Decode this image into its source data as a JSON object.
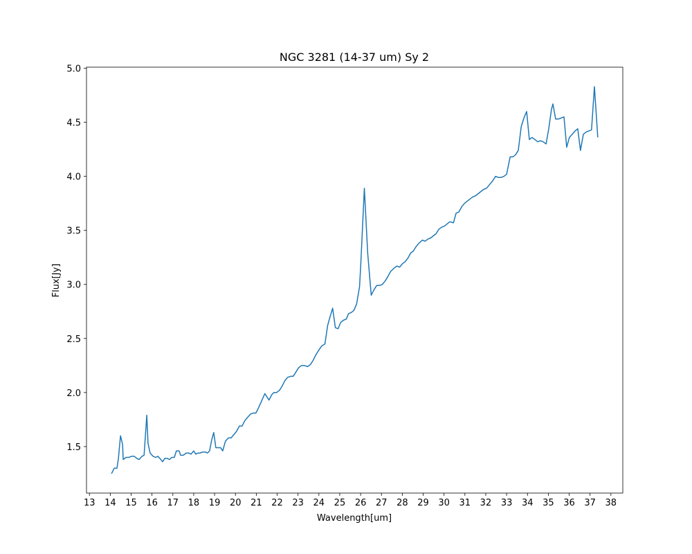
{
  "chart_data": {
    "type": "line",
    "title": "NGC 3281 (14-37 um) Sy 2",
    "x_label": "Wavelength[um]",
    "y_label": "Flux[Jy]",
    "color": "#1f77b4",
    "x": [
      14.06,
      14.19,
      14.32,
      14.39,
      14.49,
      14.59,
      14.62,
      14.75,
      14.89,
      15.02,
      15.15,
      15.28,
      15.38,
      15.52,
      15.62,
      15.75,
      15.81,
      15.91,
      16.05,
      16.18,
      16.28,
      16.38,
      16.51,
      16.61,
      16.74,
      16.84,
      16.94,
      17.07,
      17.17,
      17.3,
      17.37,
      17.5,
      17.64,
      17.77,
      17.87,
      18.0,
      18.1,
      18.2,
      18.3,
      18.43,
      18.56,
      18.66,
      18.76,
      18.86,
      18.96,
      19.06,
      19.16,
      19.29,
      19.39,
      19.52,
      19.66,
      19.79,
      19.92,
      20.05,
      20.19,
      20.32,
      20.45,
      20.58,
      20.72,
      20.85,
      20.98,
      21.11,
      21.25,
      21.41,
      21.51,
      21.61,
      21.74,
      21.84,
      21.97,
      22.11,
      22.24,
      22.37,
      22.5,
      22.64,
      22.77,
      22.9,
      23.03,
      23.17,
      23.3,
      23.46,
      23.6,
      23.73,
      23.86,
      23.99,
      24.13,
      24.29,
      24.42,
      24.52,
      24.66,
      24.79,
      24.92,
      25.05,
      25.19,
      25.32,
      25.42,
      25.55,
      25.68,
      25.81,
      25.95,
      26.01,
      26.18,
      26.34,
      26.51,
      26.64,
      26.77,
      26.91,
      27.04,
      27.17,
      27.3,
      27.44,
      27.6,
      27.74,
      27.87,
      28.0,
      28.13,
      28.26,
      28.4,
      28.53,
      28.66,
      28.79,
      28.96,
      29.09,
      29.23,
      29.36,
      29.49,
      29.62,
      29.75,
      29.89,
      30.02,
      30.15,
      30.28,
      30.45,
      30.58,
      30.71,
      30.85,
      30.98,
      31.11,
      31.24,
      31.38,
      31.51,
      31.64,
      31.77,
      31.91,
      32.04,
      32.21,
      32.34,
      32.47,
      32.6,
      32.74,
      32.87,
      33.0,
      33.17,
      33.3,
      33.43,
      33.56,
      33.7,
      33.83,
      33.96,
      34.09,
      34.22,
      34.36,
      34.49,
      34.62,
      34.75,
      34.89,
      35.02,
      35.15,
      35.22,
      35.35,
      35.48,
      35.62,
      35.75,
      35.88,
      36.01,
      36.15,
      36.28,
      36.41,
      36.54,
      36.68,
      36.81,
      36.94,
      37.07,
      37.21,
      37.37
    ],
    "values": [
      1.25,
      1.3,
      1.3,
      1.39,
      1.6,
      1.52,
      1.38,
      1.4,
      1.4,
      1.41,
      1.41,
      1.39,
      1.38,
      1.41,
      1.42,
      1.79,
      1.53,
      1.44,
      1.41,
      1.4,
      1.41,
      1.39,
      1.36,
      1.39,
      1.39,
      1.38,
      1.4,
      1.4,
      1.46,
      1.46,
      1.42,
      1.42,
      1.44,
      1.44,
      1.43,
      1.46,
      1.43,
      1.44,
      1.44,
      1.45,
      1.45,
      1.44,
      1.46,
      1.56,
      1.63,
      1.49,
      1.49,
      1.49,
      1.46,
      1.55,
      1.58,
      1.58,
      1.61,
      1.64,
      1.69,
      1.69,
      1.74,
      1.77,
      1.8,
      1.81,
      1.81,
      1.86,
      1.92,
      1.99,
      1.96,
      1.93,
      1.98,
      2.0,
      2.0,
      2.02,
      2.06,
      2.11,
      2.14,
      2.15,
      2.15,
      2.19,
      2.23,
      2.25,
      2.25,
      2.24,
      2.26,
      2.3,
      2.35,
      2.39,
      2.43,
      2.45,
      2.62,
      2.69,
      2.78,
      2.6,
      2.59,
      2.65,
      2.67,
      2.68,
      2.73,
      2.74,
      2.76,
      2.82,
      2.98,
      3.19,
      3.89,
      3.29,
      2.9,
      2.95,
      2.99,
      2.99,
      3.0,
      3.03,
      3.07,
      3.12,
      3.15,
      3.17,
      3.16,
      3.19,
      3.21,
      3.24,
      3.29,
      3.31,
      3.35,
      3.38,
      3.41,
      3.4,
      3.42,
      3.43,
      3.45,
      3.47,
      3.51,
      3.53,
      3.54,
      3.56,
      3.58,
      3.57,
      3.66,
      3.67,
      3.72,
      3.75,
      3.77,
      3.79,
      3.81,
      3.82,
      3.84,
      3.86,
      3.88,
      3.89,
      3.93,
      3.96,
      4.0,
      3.99,
      3.99,
      4.0,
      4.02,
      4.18,
      4.18,
      4.2,
      4.24,
      4.46,
      4.54,
      4.6,
      4.34,
      4.36,
      4.34,
      4.32,
      4.33,
      4.32,
      4.3,
      4.44,
      4.62,
      4.67,
      4.53,
      4.53,
      4.54,
      4.55,
      4.27,
      4.36,
      4.39,
      4.42,
      4.44,
      4.24,
      4.39,
      4.41,
      4.42,
      4.43,
      4.83,
      4.36
    ],
    "xlim": [
      12.86,
      38.57
    ],
    "ylim": [
      1.07,
      5.01
    ],
    "xticks": [
      13,
      14,
      15,
      16,
      17,
      18,
      19,
      20,
      21,
      22,
      23,
      24,
      25,
      26,
      27,
      28,
      29,
      30,
      31,
      32,
      33,
      34,
      35,
      36,
      37,
      38
    ],
    "yticks": [
      1.5,
      {
        "value": 2,
        "label": "2.0"
      },
      2.5,
      {
        "value": 3,
        "label": "3.0"
      },
      3.5,
      {
        "value": 4,
        "label": "4.0"
      },
      4.5,
      {
        "value": 5,
        "label": "5.0"
      }
    ]
  }
}
